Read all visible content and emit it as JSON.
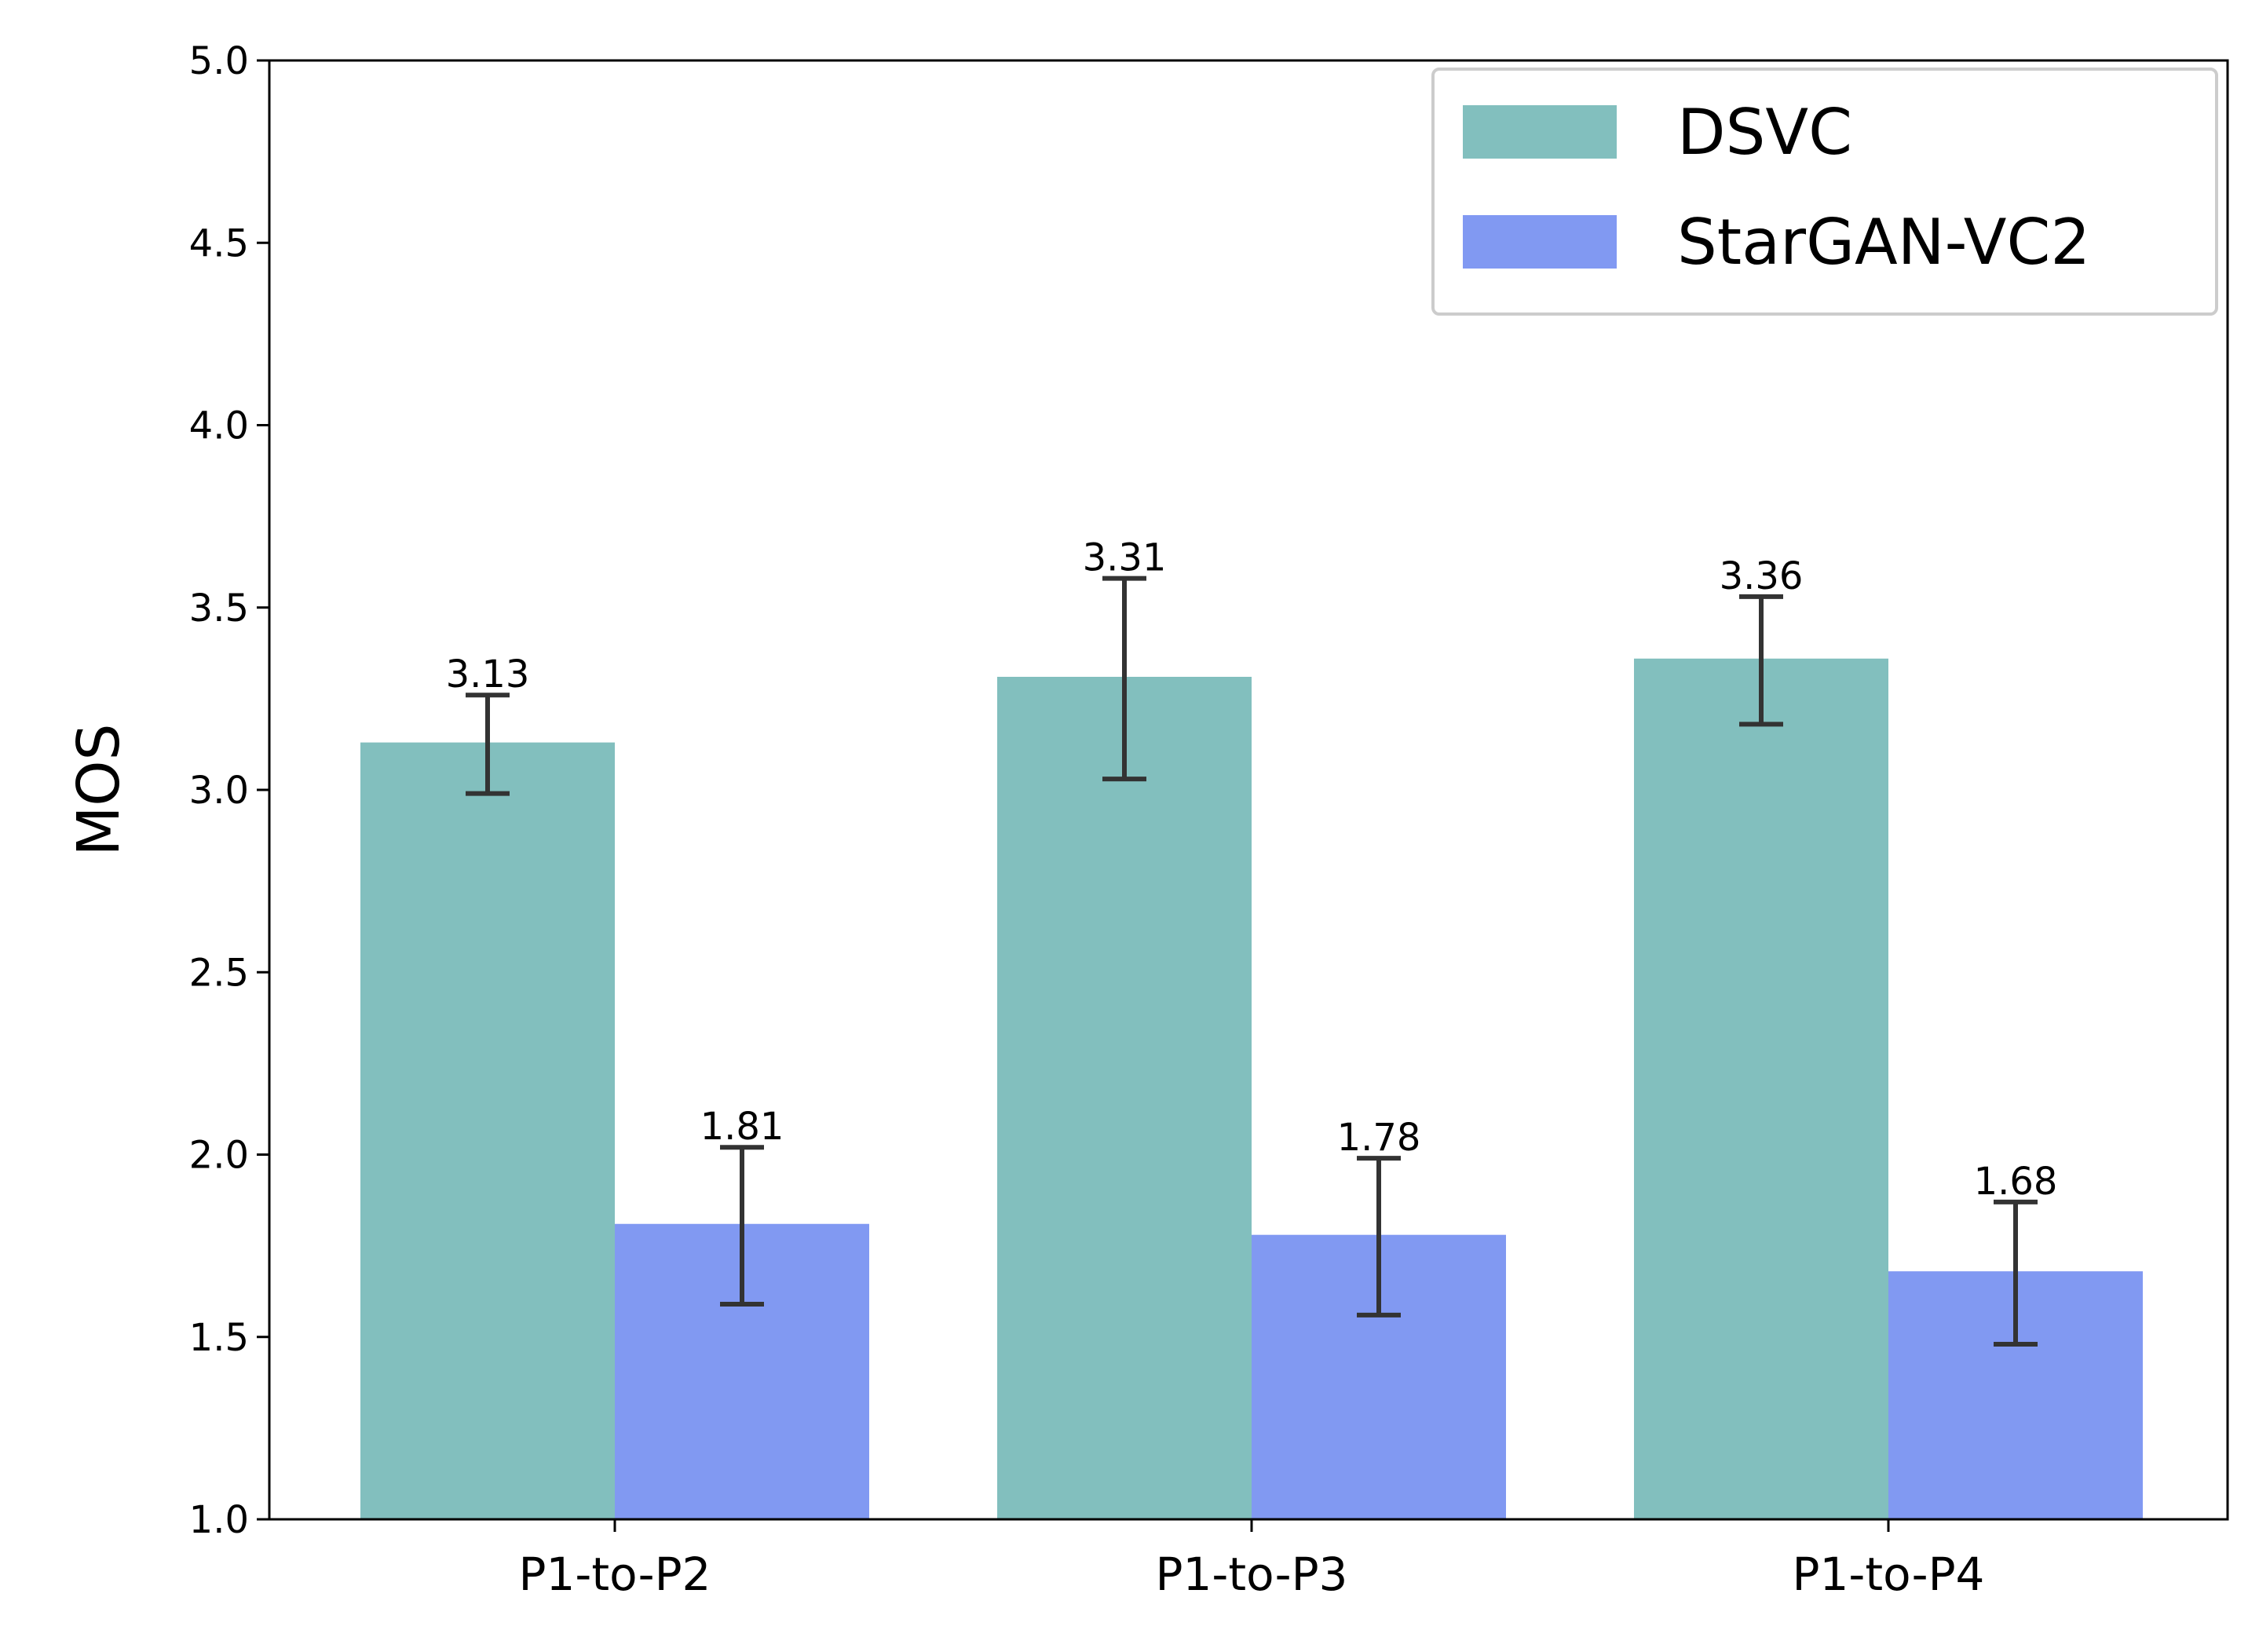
{
  "chart_data": {
    "type": "bar",
    "title": "",
    "xlabel": "",
    "ylabel": "MOS",
    "ylim": [
      1.0,
      5.0
    ],
    "yticks": [
      "1.0",
      "1.5",
      "2.0",
      "2.5",
      "3.0",
      "3.5",
      "4.0",
      "4.5",
      "5.0"
    ],
    "categories": [
      "P1-to-P2",
      "P1-to-P3",
      "P1-to-P4"
    ],
    "series": [
      {
        "name": "DSVC",
        "color": "#82bfbe",
        "values": [
          3.13,
          3.31,
          3.36
        ],
        "labels": [
          "3.13",
          "3.31",
          "3.36"
        ],
        "error_low": [
          2.99,
          3.03,
          3.18
        ],
        "error_high": [
          3.26,
          3.58,
          3.53
        ]
      },
      {
        "name": "StarGAN-VC2",
        "color": "#8199f2",
        "values": [
          1.81,
          1.78,
          1.68
        ],
        "labels": [
          "1.81",
          "1.78",
          "1.68"
        ],
        "error_low": [
          1.59,
          1.56,
          1.48
        ],
        "error_high": [
          2.02,
          1.99,
          1.87
        ]
      }
    ],
    "legend": {
      "position": "top-right",
      "entries": [
        "DSVC",
        "StarGAN-VC2"
      ]
    },
    "grid": false,
    "error_bar_color": "#333333"
  }
}
